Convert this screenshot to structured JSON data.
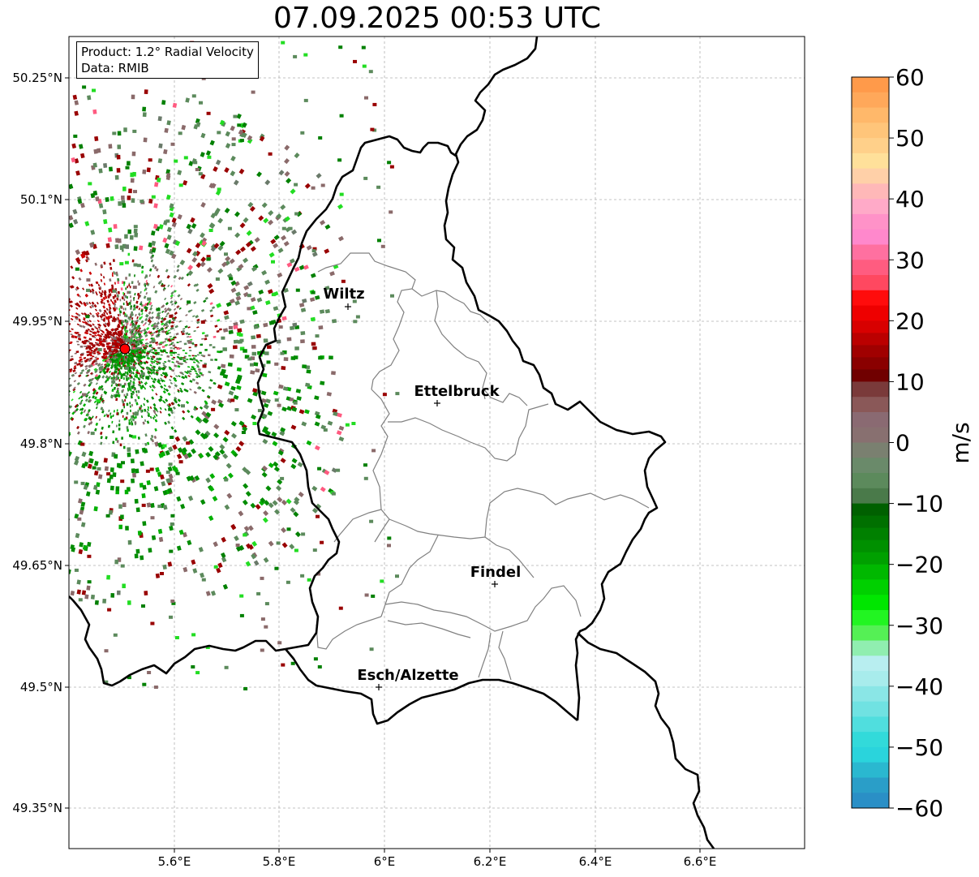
{
  "title": "07.09.2025 00:53 UTC",
  "info": {
    "product": "Product: 1.2° Radial Velocity",
    "data_source": "Data: RMIB"
  },
  "axes": {
    "lon_ticks": [
      "5.6°E",
      "5.8°E",
      "6°E",
      "6.2°E",
      "6.4°E",
      "6.6°E"
    ],
    "lat_ticks": [
      "50.25°N",
      "50.1°N",
      "49.95°N",
      "49.8°N",
      "49.65°N",
      "49.5°N",
      "49.35°N"
    ]
  },
  "cities": [
    {
      "name": "Wiltz"
    },
    {
      "name": "Ettelbruck"
    },
    {
      "name": "Findel"
    },
    {
      "name": "Esch/Alzette"
    }
  ],
  "colorbar": {
    "unit": "m/s",
    "ticks": [
      "60",
      "50",
      "40",
      "30",
      "20",
      "10",
      "0",
      "−10",
      "−20",
      "−30",
      "−40",
      "−50",
      "−60"
    ],
    "min": -60,
    "max": 60,
    "colors": {
      "neg_60_50": "#2a8fc6",
      "neg_50_40": "#40e0e0",
      "neg_40_30": "#a8ecec",
      "neg_30_20": "#22ee22",
      "neg_20_10": "#00a000",
      "neg_10_0": "#5c8a5c",
      "zero_10": "#8a6a6a",
      "pos_10_20": "#9a0000",
      "pos_20_30": "#ee0000",
      "pos_30_40": "#ff6680",
      "pos_40_50": "#ffbbcc",
      "pos_50_60": "#ffa040"
    }
  },
  "radar_site": {
    "color": "#ff0000"
  }
}
